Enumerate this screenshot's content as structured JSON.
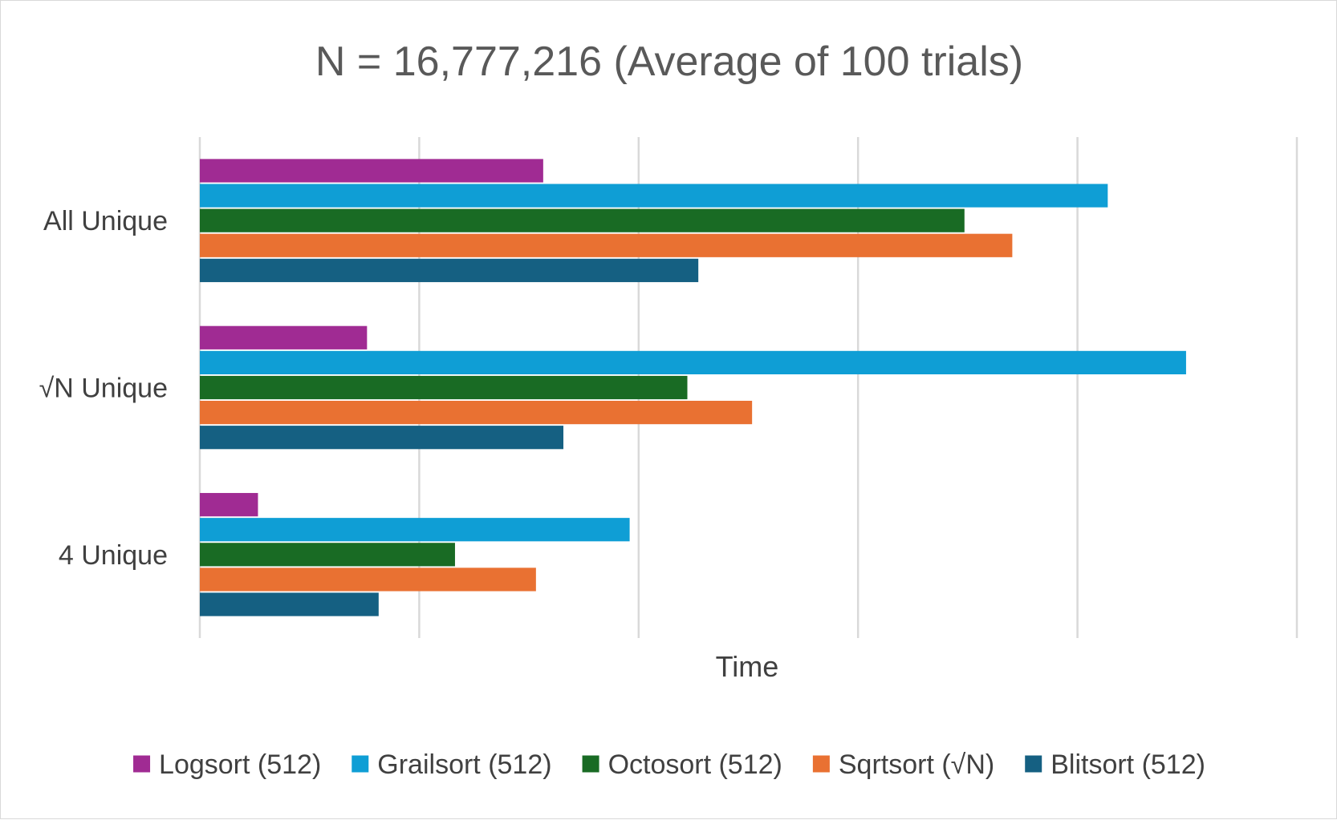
{
  "chart_data": {
    "type": "bar",
    "orientation": "horizontal",
    "title": "N = 16,777,216 (Average of 100 trials)",
    "xlabel": "Time",
    "ylabel": "",
    "categories": [
      "All Unique",
      "√N Unique",
      "4 Unique"
    ],
    "xlim": [
      0,
      5
    ],
    "grid": true,
    "tick_labels_shown": false,
    "legend_position": "bottom",
    "series": [
      {
        "name": "Logsort (512)",
        "color": "#A02B93",
        "values": [
          1.565,
          0.762,
          0.265
        ]
      },
      {
        "name": "Grailsort (512)",
        "color": "#0F9ED5",
        "values": [
          4.138,
          4.495,
          1.959
        ]
      },
      {
        "name": "Octosort (512)",
        "color": "#196B24",
        "values": [
          3.485,
          2.222,
          1.163
        ]
      },
      {
        "name": "Sqrtsort (√N)",
        "color": "#E97132",
        "values": [
          3.703,
          2.517,
          1.532
        ]
      },
      {
        "name": "Blitsort (512)",
        "color": "#156082",
        "values": [
          2.272,
          1.657,
          0.815
        ]
      }
    ]
  }
}
